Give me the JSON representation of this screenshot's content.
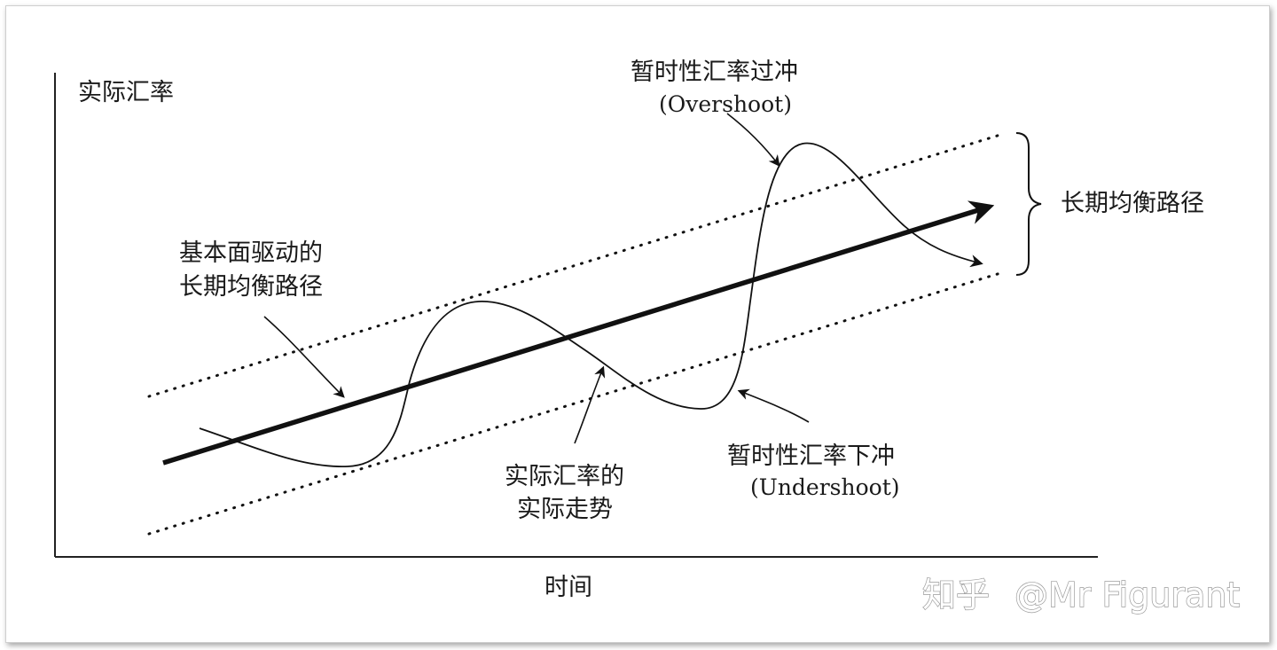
{
  "diagram": {
    "y_axis_label": "实际汇率",
    "x_axis_label": "时间",
    "fundamental_label": [
      "基本面驱动的",
      "长期均衡路径"
    ],
    "overshoot_label": [
      "暂时性汇率过冲",
      "(Overshoot)"
    ],
    "undershoot_label": [
      "暂时性汇率下冲",
      "(Undershoot)"
    ],
    "actual_trend_label": [
      "实际汇率的",
      "实际走势"
    ],
    "band_label": "长期均衡路径"
  },
  "watermark": {
    "platform": "知乎",
    "author": "@Mr Figurant"
  }
}
